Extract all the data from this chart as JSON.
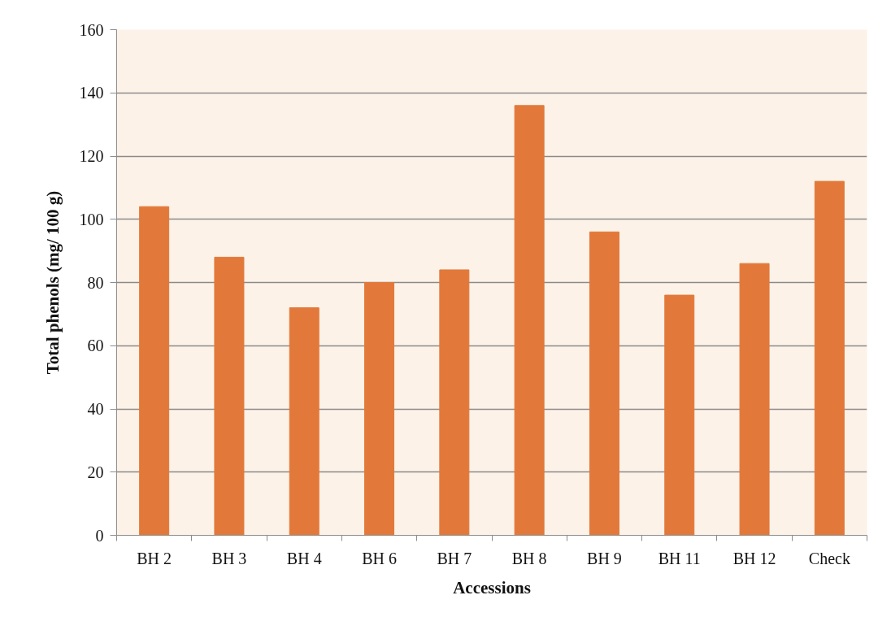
{
  "chart_data": {
    "type": "bar",
    "xlabel": "Accessions",
    "ylabel": "Total phenols (mg/ 100 g)",
    "categories": [
      "BH 2",
      "BH 3",
      "BH 4",
      "BH 6",
      "BH 7",
      "BH 8",
      "BH 9",
      "BH 11",
      "BH 12",
      "Check"
    ],
    "values": [
      104,
      88,
      72,
      80,
      84,
      136,
      96,
      76,
      86,
      112
    ],
    "color": "#e2793a",
    "ylim": [
      0,
      160
    ],
    "yticks": [
      0,
      20,
      40,
      60,
      80,
      100,
      120,
      140,
      160
    ],
    "grid": "y"
  }
}
